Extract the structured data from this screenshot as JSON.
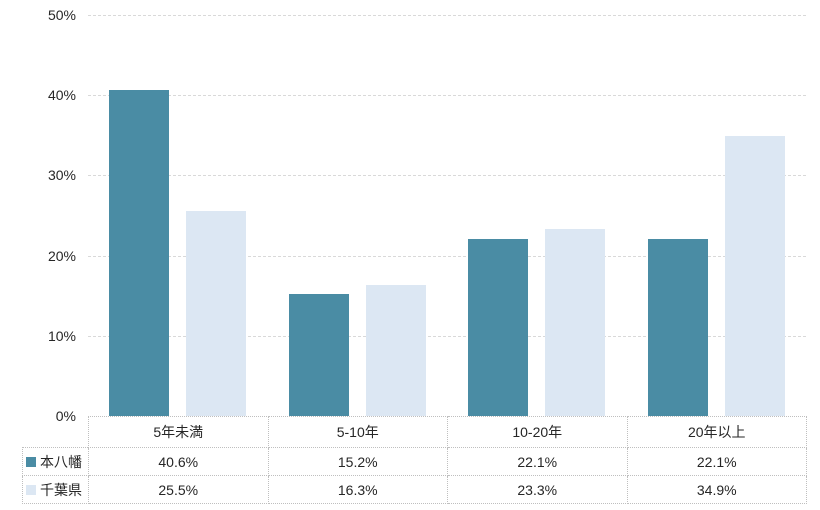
{
  "chart_data": {
    "type": "bar",
    "title": "",
    "xlabel": "",
    "ylabel": "",
    "categories": [
      "5年未満",
      "5-10年",
      "10-20年",
      "20年以上"
    ],
    "series": [
      {
        "name": "本八幡",
        "color": "#4A8CA4",
        "values": [
          40.6,
          15.2,
          22.1,
          22.1
        ],
        "value_labels": [
          "40.6%",
          "15.2%",
          "22.1%",
          "22.1%"
        ]
      },
      {
        "name": "千葉県",
        "color": "#DCE7F3",
        "values": [
          25.5,
          16.3,
          23.3,
          34.9
        ],
        "value_labels": [
          "25.5%",
          "16.3%",
          "23.3%",
          "34.9%"
        ]
      }
    ],
    "ylim": [
      0,
      50
    ],
    "ytick_step": 10,
    "ytick_labels": [
      "0%",
      "10%",
      "20%",
      "30%",
      "40%",
      "50%"
    ],
    "grid": "horizontal-dashed",
    "legend_position": "table-left",
    "colors": {
      "gridline": "#d9d9d9",
      "table_border": "#bfbfbf",
      "text": "#262626",
      "background": "#ffffff"
    }
  }
}
